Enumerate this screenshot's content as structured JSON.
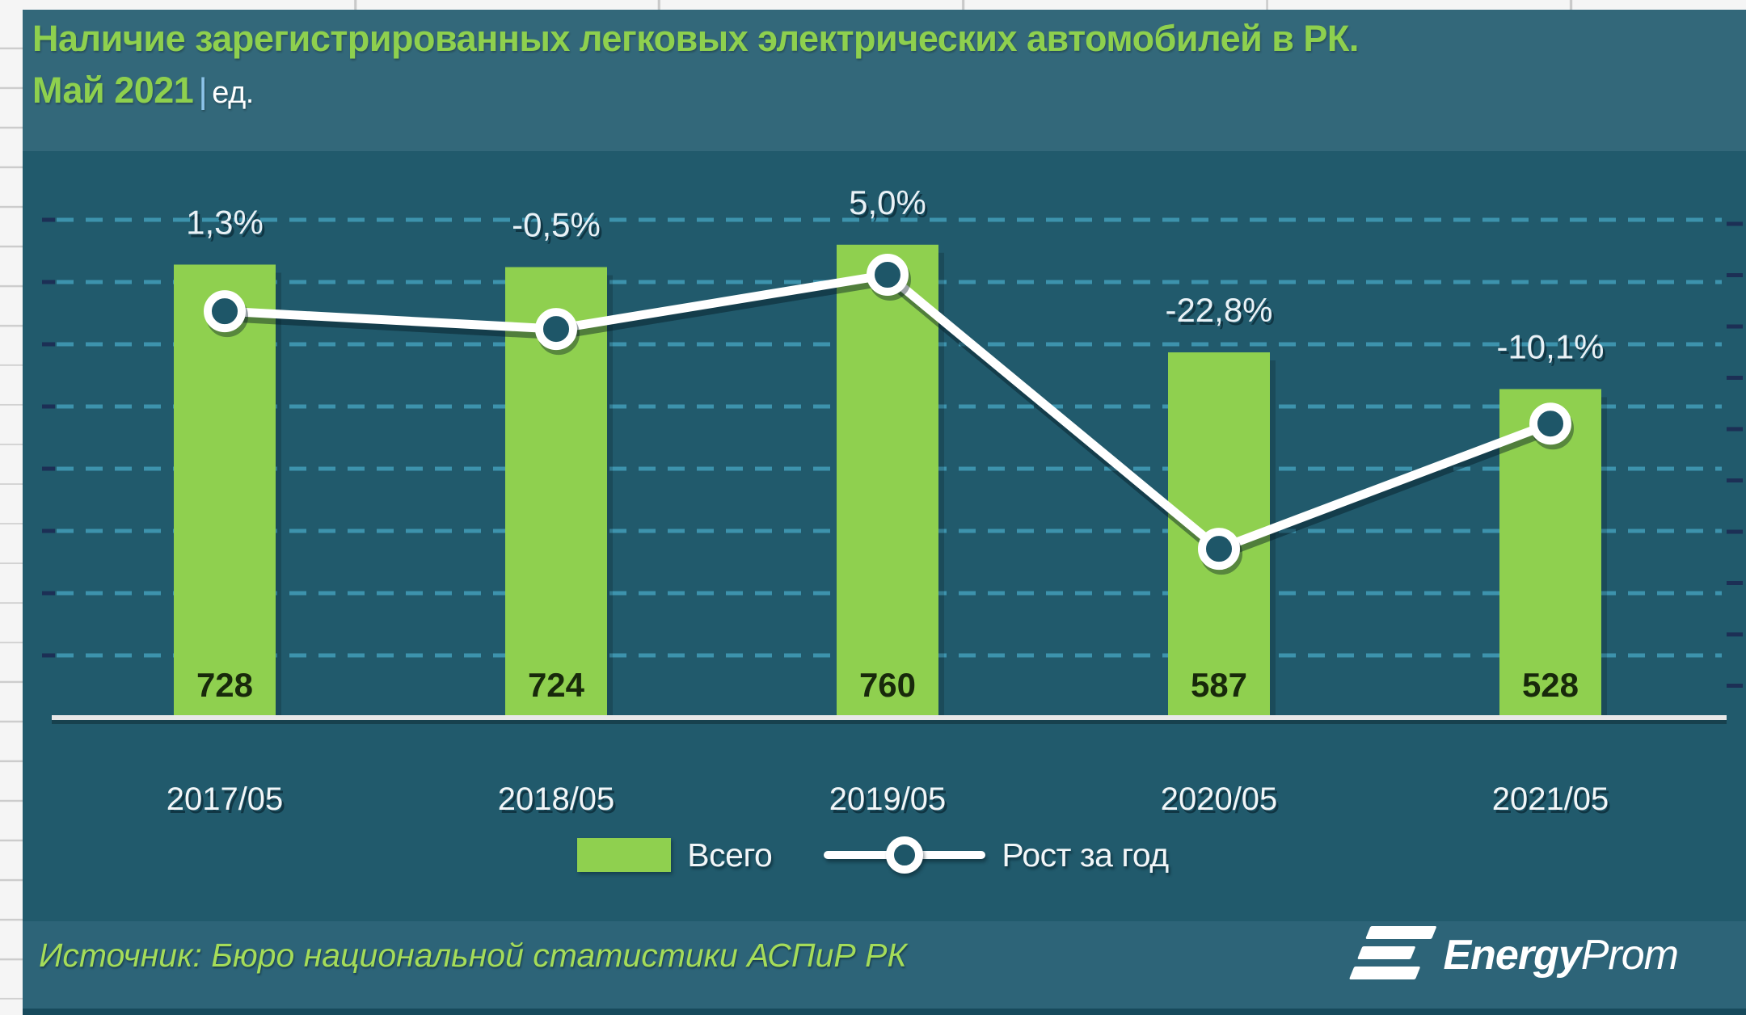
{
  "title": {
    "line1": "Наличие зарегистрированных легковых электрических автомобилей в РК.",
    "period": "Май 2021",
    "separator": "|",
    "unit": "ед."
  },
  "chart_data": {
    "type": "bar",
    "title": "Наличие зарегистрированных легковых электрических автомобилей в РК. Май 2021",
    "ylabel": "ед.",
    "categories": [
      "2017/05",
      "2018/05",
      "2019/05",
      "2020/05",
      "2021/05"
    ],
    "series": [
      {
        "name": "Всего",
        "type": "bar",
        "values": [
          728,
          724,
          760,
          587,
          528
        ],
        "labels": [
          "728",
          "724",
          "760",
          "587",
          "528"
        ],
        "color": "#8fd04f"
      },
      {
        "name": "Рост за год",
        "type": "line",
        "unit": "%",
        "values": [
          1.3,
          -0.5,
          5.0,
          -22.8,
          -10.1
        ],
        "labels": [
          "1,3%",
          "-0,5%",
          "5,0%",
          "-22,8%",
          "-10,1%"
        ],
        "color": "#ffffff"
      }
    ],
    "primary_axis": {
      "min": 0,
      "gridline_step": 100,
      "gridlines_visible": 8,
      "grid": "dashed"
    },
    "secondary_axis": {
      "unit": "%",
      "tick_marks": 10
    },
    "legend_position": "bottom"
  },
  "legend": {
    "items": [
      {
        "label": "Всего",
        "swatch": "bar"
      },
      {
        "label": "Рост за год",
        "swatch": "line-marker"
      }
    ]
  },
  "footer": {
    "source": "Источник: Бюро национальной статистики АСПиР РК",
    "logo_bold": "Energy",
    "logo_light": "Prom"
  },
  "colors": {
    "accent_green": "#8fd04f",
    "title_green": "#8ed04e",
    "title_bg": "#33687a",
    "chart_bg": "#215a6c",
    "footer_bg": "#2d6478",
    "card_bottom_strip": "#174a5c",
    "grid_dash": "#3d93ad",
    "tick_dark": "#1c2f55",
    "line_white": "#ffffff",
    "marker_fill": "#1e5668",
    "axis_line": "#e8e8e8",
    "percent_label": "#e9f1f6",
    "x_label": "#f2f6f8",
    "value_label": "#18290b",
    "source_text": "#a5dc59",
    "pipe_blue": "#8cc3e8",
    "sheet_bg": "#f5f5f5",
    "sheet_grid": "#c9c9c9"
  }
}
